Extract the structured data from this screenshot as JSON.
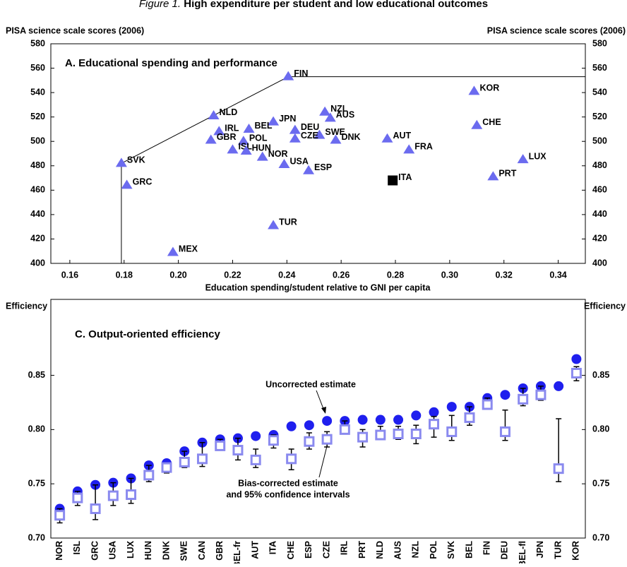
{
  "figure_title": {
    "lead": "Figure 1.",
    "text": "High expenditure per student and low educational outcomes"
  },
  "chart_data": [
    {
      "type": "scatter",
      "title": "A. Educational spending and performance",
      "y_label": "PISA science scale scores (2006)",
      "x_label": "Education spending/student relative to GNI per capita",
      "xlim": [
        0.153,
        0.35
      ],
      "xticks": [
        0.16,
        0.18,
        {
          "value": 0.2,
          "label": "0.20"
        },
        0.22,
        0.24,
        0.26,
        0.28,
        {
          "value": 0.3,
          "label": "0.30"
        },
        0.32,
        0.34
      ],
      "ylim": [
        400,
        580
      ],
      "yticks": [
        400,
        420,
        440,
        460,
        480,
        500,
        520,
        540,
        560,
        580
      ],
      "frontier": true,
      "series": [
        {
          "color": "#6b6bef",
          "marker": "triangle",
          "labels": [
            "FIN",
            "KOR",
            "NZL",
            "NLD",
            "AUS",
            "JPN",
            "CHE",
            "IRL",
            "BEL",
            "DEU",
            "SWE",
            "CZE",
            "DNK",
            "AUT",
            "GBR",
            "POL",
            "FRA",
            "ISL",
            "HUN",
            "NOR",
            "LUX",
            "USA",
            "SVK",
            "ESP",
            "PRT",
            "GRC",
            "TUR",
            "MEX"
          ],
          "x": [
            0.2405,
            0.309,
            0.254,
            0.213,
            0.256,
            0.235,
            0.31,
            0.215,
            0.226,
            0.243,
            0.252,
            0.243,
            0.258,
            0.277,
            0.212,
            0.224,
            0.285,
            0.22,
            0.225,
            0.231,
            0.327,
            0.239,
            0.179,
            0.248,
            0.316,
            0.181,
            0.235,
            0.198
          ],
          "y": [
            553,
            541,
            524,
            521,
            519,
            516,
            513,
            508,
            510,
            509,
            505,
            502,
            501,
            502,
            501,
            500,
            493,
            493,
            492,
            487,
            485,
            481,
            482,
            476,
            471,
            464,
            431,
            409
          ]
        },
        {
          "color": "#000000",
          "marker": "square",
          "labels": [
            "ITA"
          ],
          "x": [
            0.279
          ],
          "y": [
            468
          ]
        }
      ]
    },
    {
      "type": "errorbar",
      "title": "C. Output-oriented efficiency",
      "y_label": "Efficiency",
      "categories": [
        "NOR",
        "ISL",
        "GRC",
        "USA",
        "LUX",
        "HUN",
        "DNK",
        "SWE",
        "CAN",
        "GBR",
        "BEL-fr",
        "AUT",
        "ITA",
        "CHE",
        "ESP",
        "CZE",
        "IRL",
        "PRT",
        "NLD",
        "AUS",
        "NZL",
        "POL",
        "SVK",
        "BEL",
        "FIN",
        "DEU",
        "BEL-fl",
        "JPN",
        "TUR",
        "KOR"
      ],
      "ylim": [
        0.7,
        0.92
      ],
      "yticks": [
        {
          "value": 0.7,
          "label": "0.70"
        },
        0.75,
        {
          "value": 0.8,
          "label": "0.80"
        },
        0.85
      ],
      "series": [
        {
          "color": "#1f1fee",
          "marker": "circle",
          "values": [
            0.727,
            0.743,
            0.749,
            0.751,
            0.755,
            0.767,
            0.769,
            0.78,
            0.788,
            0.791,
            0.792,
            0.794,
            0.795,
            0.803,
            0.804,
            0.808,
            0.808,
            0.809,
            0.809,
            0.809,
            0.813,
            0.816,
            0.821,
            0.821,
            0.829,
            0.832,
            0.838,
            0.84,
            0.84,
            0.865
          ]
        },
        {
          "color": "#8a8aef",
          "marker": "square",
          "values": [
            0.721,
            0.737,
            0.727,
            0.739,
            0.74,
            0.758,
            0.765,
            0.77,
            0.773,
            0.785,
            0.781,
            0.772,
            0.79,
            0.773,
            0.789,
            0.791,
            0.8,
            0.793,
            0.795,
            0.796,
            0.796,
            0.805,
            0.798,
            0.811,
            0.823,
            0.798,
            0.828,
            0.832,
            0.764,
            0.852
          ],
          "lower": [
            0.714,
            0.73,
            0.717,
            0.73,
            0.732,
            0.752,
            0.76,
            0.765,
            0.766,
            0.781,
            0.772,
            0.765,
            0.783,
            0.763,
            0.782,
            0.784,
            0.798,
            0.784,
            0.791,
            0.791,
            0.787,
            0.793,
            0.79,
            0.804,
            0.819,
            0.79,
            0.822,
            0.827,
            0.752,
            0.845
          ],
          "upper": [
            0.727,
            0.743,
            0.749,
            0.751,
            0.755,
            0.767,
            0.769,
            0.78,
            0.788,
            0.791,
            0.792,
            0.782,
            0.795,
            0.782,
            0.797,
            0.798,
            0.808,
            0.8,
            0.803,
            0.803,
            0.804,
            0.812,
            0.813,
            0.821,
            0.829,
            0.818,
            0.838,
            0.84,
            0.81,
            0.858
          ]
        }
      ],
      "annotations": [
        "Uncorrected estimate",
        "Bias-corrected estimate",
        "and 95% confidence intervals"
      ]
    }
  ]
}
